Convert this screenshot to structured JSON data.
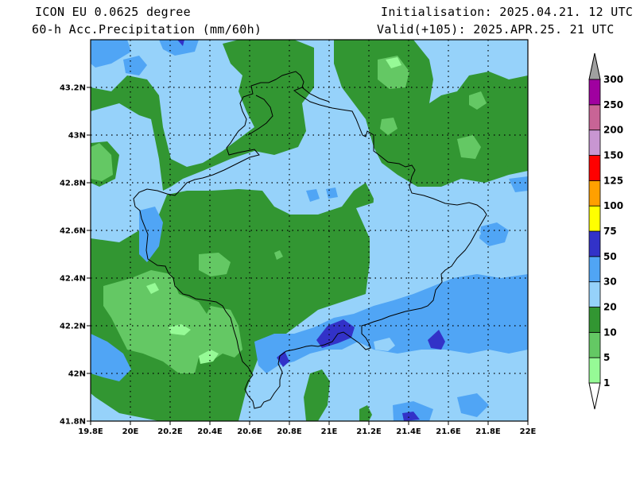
{
  "header": {
    "model": "ICON EU 0.0625 degree",
    "variable": "60-h Acc.Precipitation (mm/60h)",
    "init": "Initialisation: 2025.04.21. 12 UTC",
    "valid": "Valid(+105): 2025.APR.25. 21 UTC"
  },
  "axes": {
    "x_ticks": [
      "19.8E",
      "20E",
      "20.2E",
      "20.4E",
      "20.6E",
      "20.8E",
      "21E",
      "21.2E",
      "21.4E",
      "21.6E",
      "21.8E",
      "22E"
    ],
    "y_ticks": [
      "41.8N",
      "42N",
      "42.2N",
      "42.4N",
      "42.6N",
      "42.8N",
      "43N",
      "43.2N"
    ],
    "lon_range": [
      19.8,
      22.0
    ],
    "lat_range": [
      41.8,
      43.4
    ]
  },
  "colorbar": {
    "levels": [
      "1",
      "5",
      "10",
      "20",
      "30",
      "50",
      "75",
      "100",
      "125",
      "150",
      "200",
      "250",
      "300"
    ],
    "colors": [
      "#96fa96",
      "#64c864",
      "#329632",
      "#96d2fa",
      "#50a5f5",
      "#3232c8",
      "#ffff00",
      "#ffa000",
      "#ff0000",
      "#c896d2",
      "#c86496",
      "#a000a0"
    ],
    "over_color": "#a0a0a0",
    "under_color": "#ffffff"
  },
  "precip_colors": {
    "light_blue": "#96d2fa",
    "dark_green": "#329632",
    "medium_green": "#64c864",
    "light_green": "#96fa96",
    "medium_blue": "#50a5f5",
    "dark_blue": "#3232c8"
  }
}
